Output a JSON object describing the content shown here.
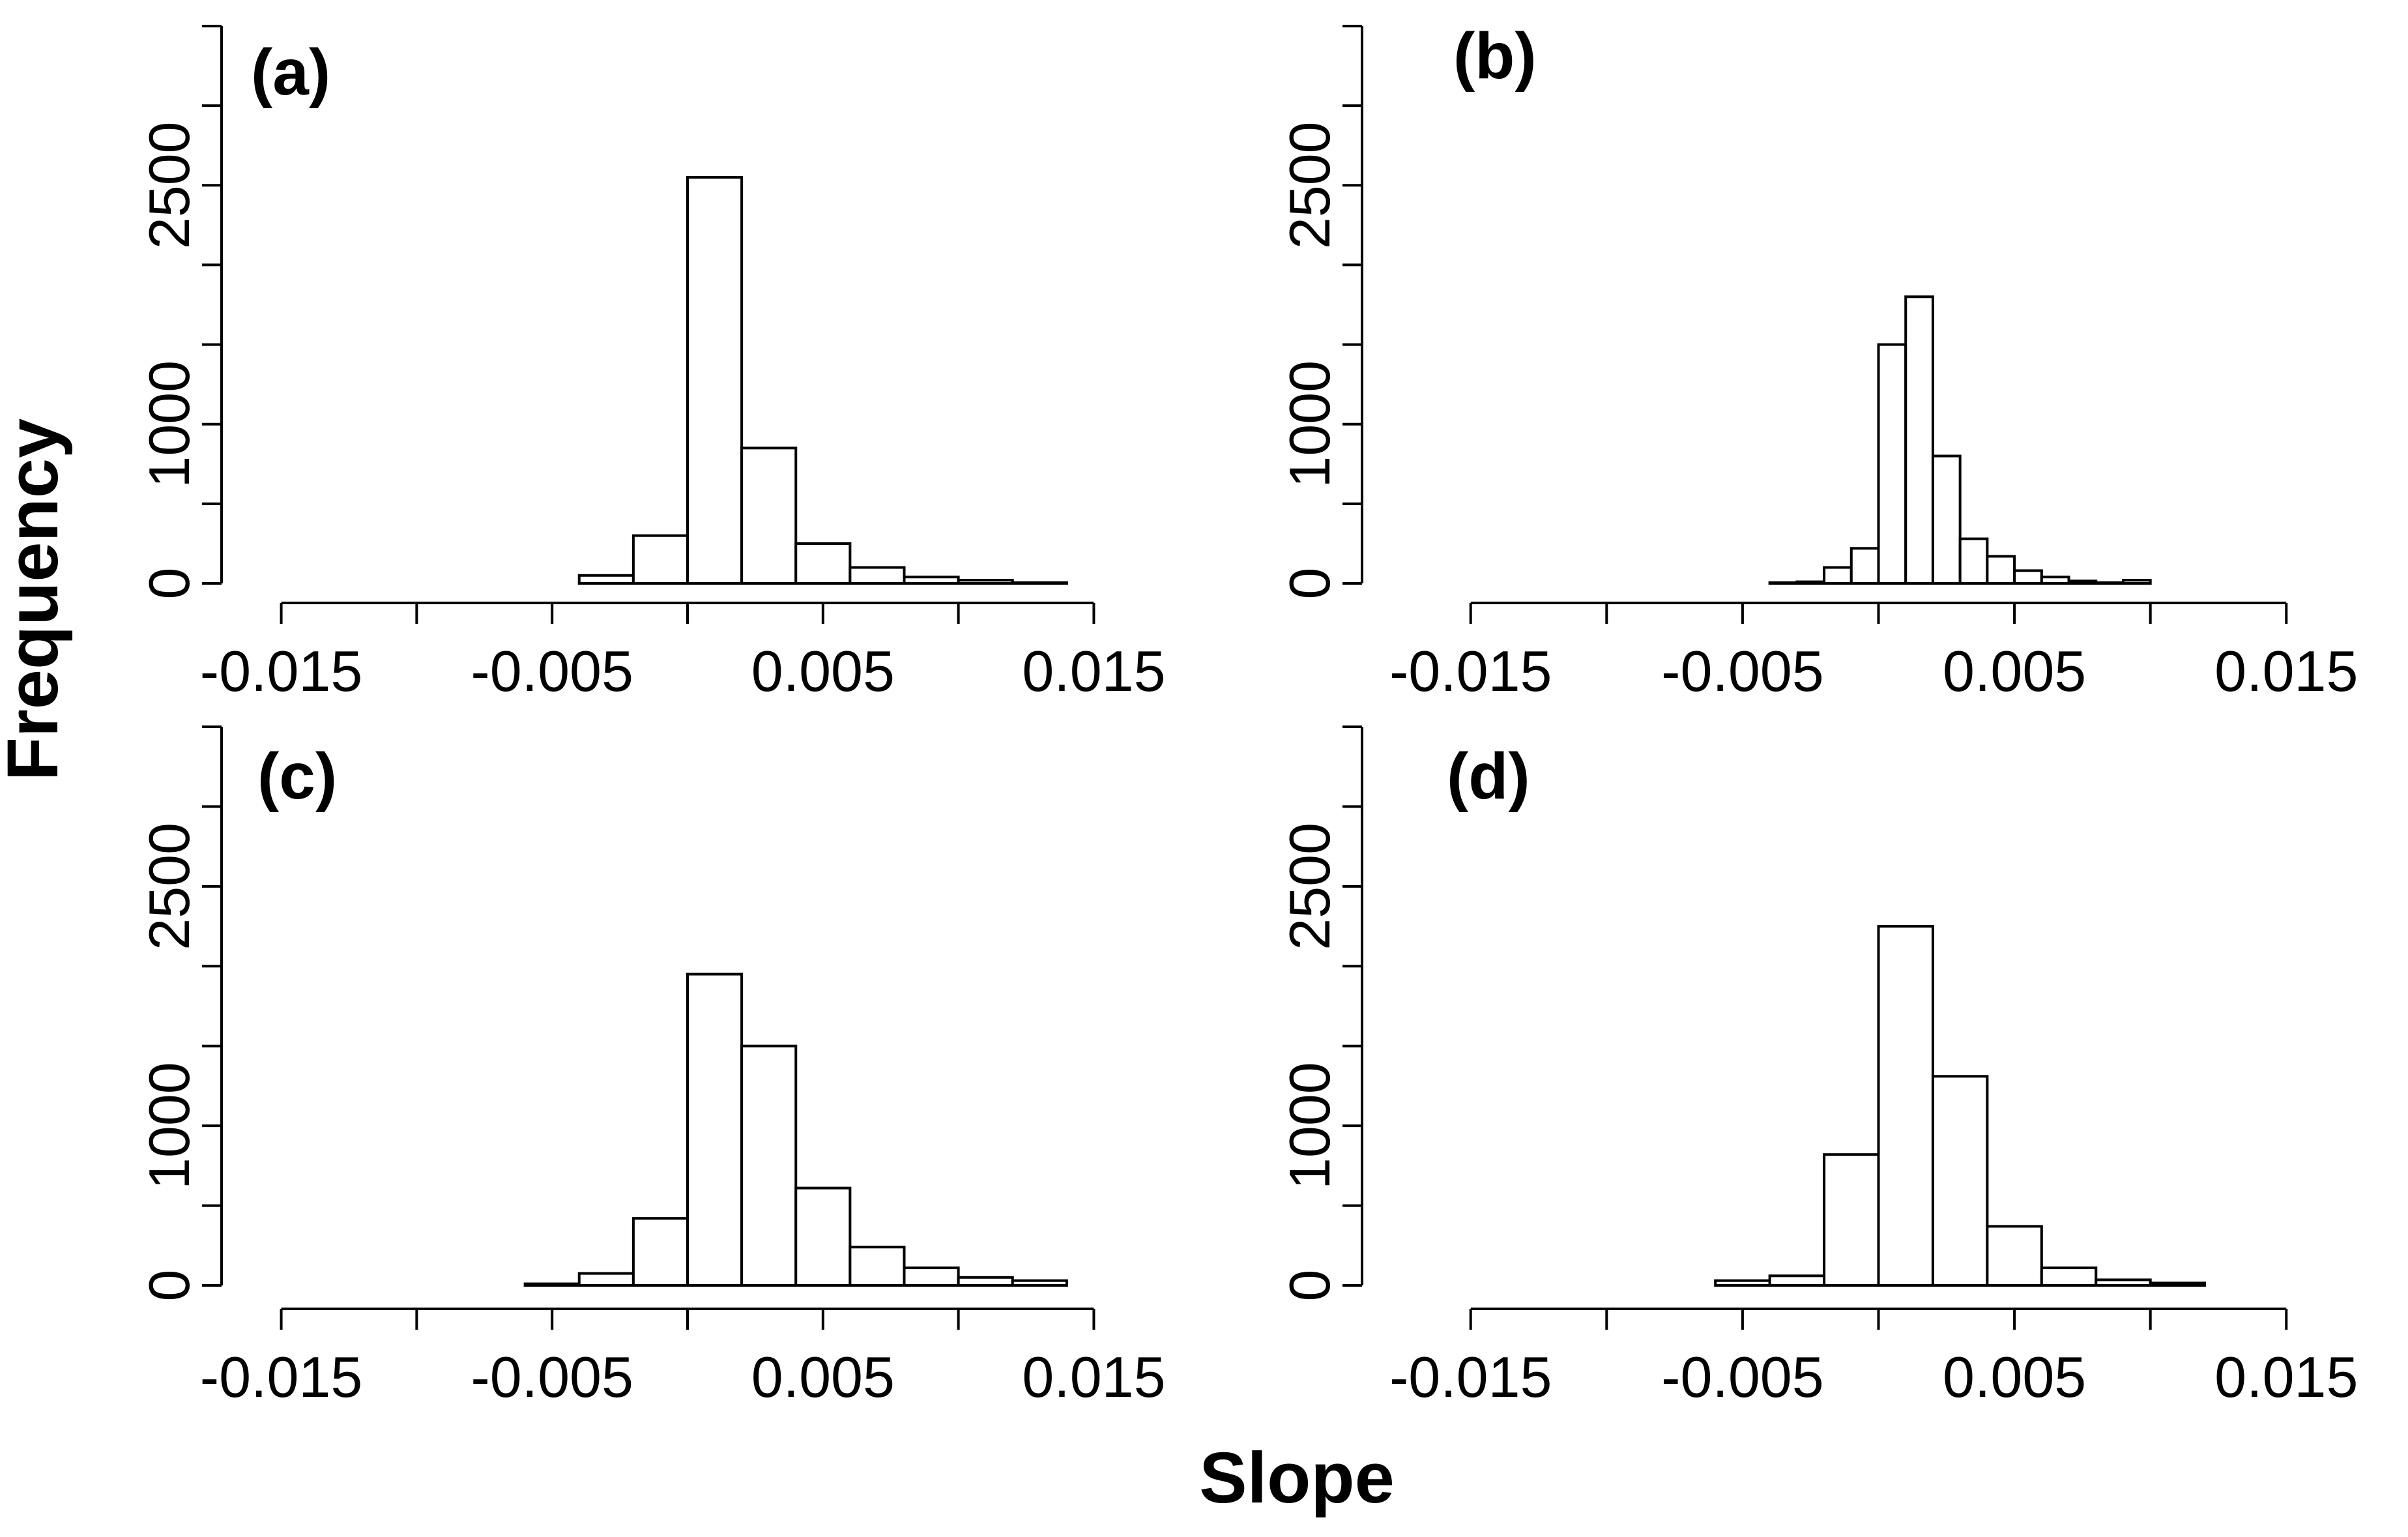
{
  "figure": {
    "xlabel": "Slope",
    "ylabel": "Frequency",
    "colors": {
      "bar_fill": "#ffffff",
      "bar_stroke": "#000000",
      "axis": "#000000",
      "text": "#000000"
    }
  },
  "chart_data": [
    {
      "type": "bar",
      "panel": "(a)",
      "title": "(a)",
      "xlabel": "Slope",
      "ylabel": "Frequency",
      "bin_width": 0.002,
      "bin_starts": [
        -0.012,
        -0.01,
        -0.008,
        -0.006,
        -0.004,
        -0.002,
        0.0,
        0.002,
        0.004,
        0.006,
        0.008,
        0.01,
        0.012,
        0.014
      ],
      "values": [
        0,
        0,
        0,
        0,
        50,
        300,
        2550,
        850,
        250,
        100,
        40,
        20,
        5,
        0
      ],
      "xlim": [
        -0.016,
        0.016
      ],
      "ylim": [
        0,
        3500
      ],
      "xticks": [
        -0.015,
        -0.01,
        -0.005,
        0.0,
        0.005,
        0.01,
        0.015
      ],
      "xtick_labels": [
        "-0.015",
        "",
        "-0.005",
        "",
        "0.005",
        "",
        "0.015"
      ],
      "yticks": [
        0,
        500,
        1000,
        1500,
        2000,
        2500,
        3000,
        3500
      ],
      "ytick_labels": [
        "0",
        "",
        "1000",
        "",
        "",
        "2500",
        "",
        ""
      ]
    },
    {
      "type": "bar",
      "panel": "(b)",
      "title": "(b)",
      "xlabel": "Slope",
      "ylabel": "Frequency",
      "bin_width": 0.001,
      "bin_starts": [
        -0.008,
        -0.007,
        -0.006,
        -0.005,
        -0.004,
        -0.003,
        -0.002,
        -0.001,
        0.0,
        0.001,
        0.002,
        0.003,
        0.004,
        0.005,
        0.006,
        0.007,
        0.008,
        0.009,
        0.01,
        0.011
      ],
      "values": [
        0,
        0,
        0,
        0,
        5,
        10,
        100,
        220,
        1500,
        1800,
        800,
        280,
        170,
        80,
        40,
        15,
        5,
        20,
        0,
        0
      ],
      "xlim": [
        -0.016,
        0.016
      ],
      "ylim": [
        0,
        3500
      ],
      "xticks": [
        -0.015,
        -0.01,
        -0.005,
        0.0,
        0.005,
        0.01,
        0.015
      ],
      "xtick_labels": [
        "-0.015",
        "",
        "-0.005",
        "",
        "0.005",
        "",
        "0.015"
      ],
      "yticks": [
        0,
        500,
        1000,
        1500,
        2000,
        2500,
        3000,
        3500
      ],
      "ytick_labels": [
        "0",
        "",
        "1000",
        "",
        "",
        "2500",
        "",
        ""
      ]
    },
    {
      "type": "bar",
      "panel": "(c)",
      "title": "(c)",
      "xlabel": "Slope",
      "ylabel": "Frequency",
      "bin_width": 0.002,
      "bin_starts": [
        -0.012,
        -0.01,
        -0.008,
        -0.006,
        -0.004,
        -0.002,
        0.0,
        0.002,
        0.004,
        0.006,
        0.008,
        0.01,
        0.012,
        0.014
      ],
      "values": [
        0,
        0,
        0,
        10,
        75,
        420,
        1950,
        1500,
        610,
        240,
        110,
        50,
        30,
        0
      ],
      "xlim": [
        -0.016,
        0.016
      ],
      "ylim": [
        0,
        3500
      ],
      "xticks": [
        -0.015,
        -0.01,
        -0.005,
        0.0,
        0.005,
        0.01,
        0.015
      ],
      "xtick_labels": [
        "-0.015",
        "",
        "-0.005",
        "",
        "0.005",
        "",
        "0.015"
      ],
      "yticks": [
        0,
        500,
        1000,
        1500,
        2000,
        2500,
        3000,
        3500
      ],
      "ytick_labels": [
        "0",
        "",
        "1000",
        "",
        "",
        "2500",
        "",
        ""
      ]
    },
    {
      "type": "bar",
      "panel": "(d)",
      "title": "(d)",
      "xlabel": "Slope",
      "ylabel": "Frequency",
      "bin_width": 0.002,
      "bin_starts": [
        -0.014,
        -0.012,
        -0.01,
        -0.008,
        -0.006,
        -0.004,
        -0.002,
        0.0,
        0.002,
        0.004,
        0.006,
        0.008,
        0.01,
        0.012,
        0.014
      ],
      "values": [
        0,
        0,
        0,
        0,
        30,
        60,
        820,
        2250,
        1310,
        370,
        110,
        35,
        15,
        0,
        0
      ],
      "xlim": [
        -0.016,
        0.016
      ],
      "ylim": [
        0,
        3500
      ],
      "xticks": [
        -0.015,
        -0.01,
        -0.005,
        0.0,
        0.005,
        0.01,
        0.015
      ],
      "xtick_labels": [
        "-0.015",
        "",
        "-0.005",
        "",
        "0.005",
        "",
        "0.015"
      ],
      "yticks": [
        0,
        500,
        1000,
        1500,
        2000,
        2500,
        3000,
        3500
      ],
      "ytick_labels": [
        "0",
        "",
        "1000",
        "",
        "",
        "2500",
        "",
        ""
      ]
    }
  ]
}
